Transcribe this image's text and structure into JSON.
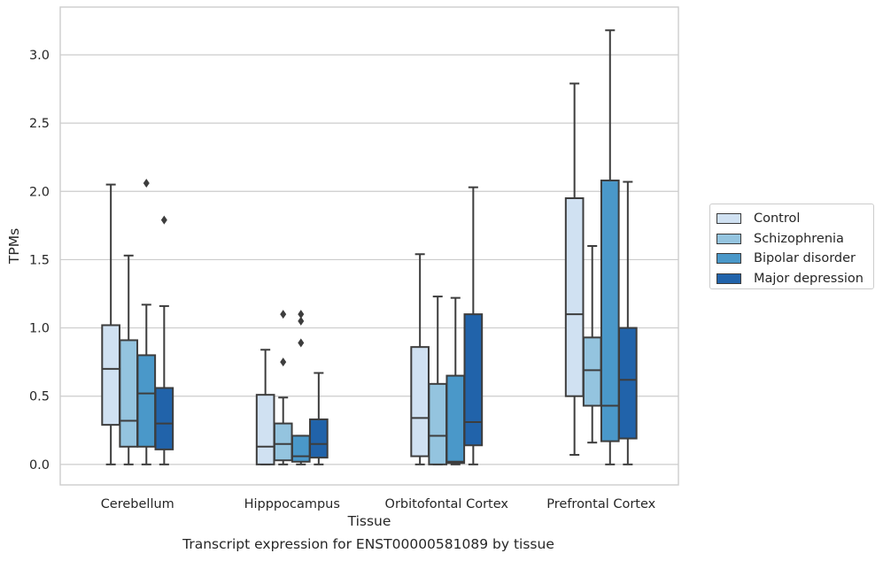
{
  "caption": "Transcript expression for ENST00000581089 by tissue",
  "chart_data": {
    "type": "box",
    "xlabel": "Tissue",
    "ylabel": "TPMs",
    "ylim": [
      -0.15,
      3.35
    ],
    "yticks": [
      0.0,
      0.5,
      1.0,
      1.5,
      2.0,
      2.5,
      3.0
    ],
    "ytick_labels": [
      "0.0",
      "0.5",
      "1.0",
      "1.5",
      "2.0",
      "2.5",
      "3.0"
    ],
    "grid": "horizontal",
    "legend_position": "right",
    "categories": [
      "Cerebellum",
      "Hipppocampus",
      "Orbitofontal Cortex",
      "Prefrontal Cortex"
    ],
    "series": [
      {
        "name": "Control",
        "color": "#d0e1f2",
        "boxes": [
          {
            "whislo": 0.0,
            "q1": 0.29,
            "med": 0.7,
            "q3": 1.02,
            "whishi": 2.05,
            "fliers": []
          },
          {
            "whislo": 0.0,
            "q1": 0.0,
            "med": 0.13,
            "q3": 0.51,
            "whishi": 0.84,
            "fliers": []
          },
          {
            "whislo": 0.0,
            "q1": 0.06,
            "med": 0.34,
            "q3": 0.86,
            "whishi": 1.54,
            "fliers": []
          },
          {
            "whislo": 0.07,
            "q1": 0.5,
            "med": 1.1,
            "q3": 1.95,
            "whishi": 2.79,
            "fliers": []
          }
        ]
      },
      {
        "name": "Schizophrenia",
        "color": "#94c4df",
        "boxes": [
          {
            "whislo": 0.0,
            "q1": 0.13,
            "med": 0.32,
            "q3": 0.91,
            "whishi": 1.53,
            "fliers": []
          },
          {
            "whislo": 0.0,
            "q1": 0.03,
            "med": 0.15,
            "q3": 0.3,
            "whishi": 0.49,
            "fliers": [
              0.75,
              1.1
            ]
          },
          {
            "whislo": 0.0,
            "q1": 0.0,
            "med": 0.21,
            "q3": 0.59,
            "whishi": 1.23,
            "fliers": []
          },
          {
            "whislo": 0.16,
            "q1": 0.43,
            "med": 0.69,
            "q3": 0.93,
            "whishi": 1.6,
            "fliers": []
          }
        ]
      },
      {
        "name": "Bipolar disorder",
        "color": "#4a98c9",
        "boxes": [
          {
            "whislo": 0.0,
            "q1": 0.13,
            "med": 0.52,
            "q3": 0.8,
            "whishi": 1.17,
            "fliers": [
              2.06
            ]
          },
          {
            "whislo": 0.0,
            "q1": 0.02,
            "med": 0.06,
            "q3": 0.21,
            "whishi": 0.21,
            "fliers": [
              0.89,
              1.05,
              1.1
            ]
          },
          {
            "whislo": 0.0,
            "q1": 0.01,
            "med": 0.02,
            "q3": 0.65,
            "whishi": 1.22,
            "fliers": []
          },
          {
            "whislo": 0.0,
            "q1": 0.17,
            "med": 0.43,
            "q3": 2.08,
            "whishi": 3.18,
            "fliers": []
          }
        ]
      },
      {
        "name": "Major depression",
        "color": "#2163aa",
        "boxes": [
          {
            "whislo": 0.0,
            "q1": 0.11,
            "med": 0.3,
            "q3": 0.56,
            "whishi": 1.16,
            "fliers": [
              1.79
            ]
          },
          {
            "whislo": 0.0,
            "q1": 0.05,
            "med": 0.15,
            "q3": 0.33,
            "whishi": 0.67,
            "fliers": []
          },
          {
            "whislo": 0.0,
            "q1": 0.14,
            "med": 0.31,
            "q3": 1.1,
            "whishi": 2.03,
            "fliers": []
          },
          {
            "whislo": 0.0,
            "q1": 0.19,
            "med": 0.62,
            "q3": 1.0,
            "whishi": 2.07,
            "fliers": []
          }
        ]
      }
    ]
  }
}
